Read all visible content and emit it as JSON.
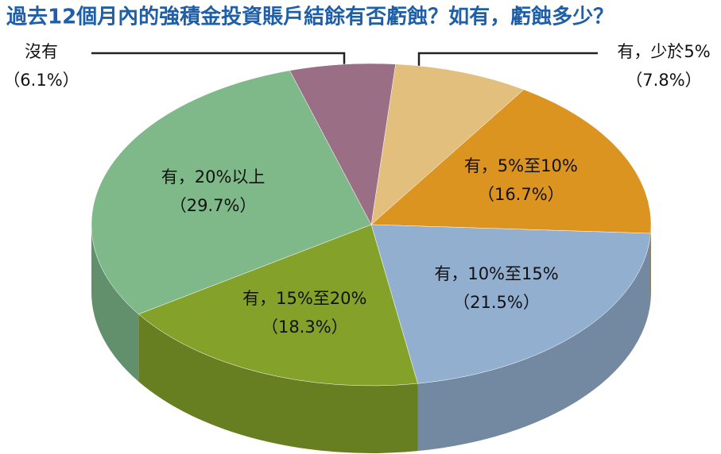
{
  "chart_data": {
    "type": "pie",
    "title": "過去12個月內的強積金投資賬戶結餘有否虧蝕？如有，虧蝕多少？",
    "categories": [
      "有，少於5%",
      "有，5%至10%",
      "有，10%至15%",
      "有，15%至20%",
      "有，20%以上",
      "沒有"
    ],
    "values": [
      7.8,
      16.7,
      21.5,
      18.3,
      29.7,
      6.1
    ],
    "value_labels": [
      "（7.8%）",
      "（16.7%）",
      "（21.5%）",
      "（18.3%）",
      "（29.7%）",
      "（6.1%）"
    ],
    "colors": [
      "#e2bf7c",
      "#dc9421",
      "#93afd0",
      "#84a22a",
      "#7fb98a",
      "#9a6f86"
    ]
  }
}
